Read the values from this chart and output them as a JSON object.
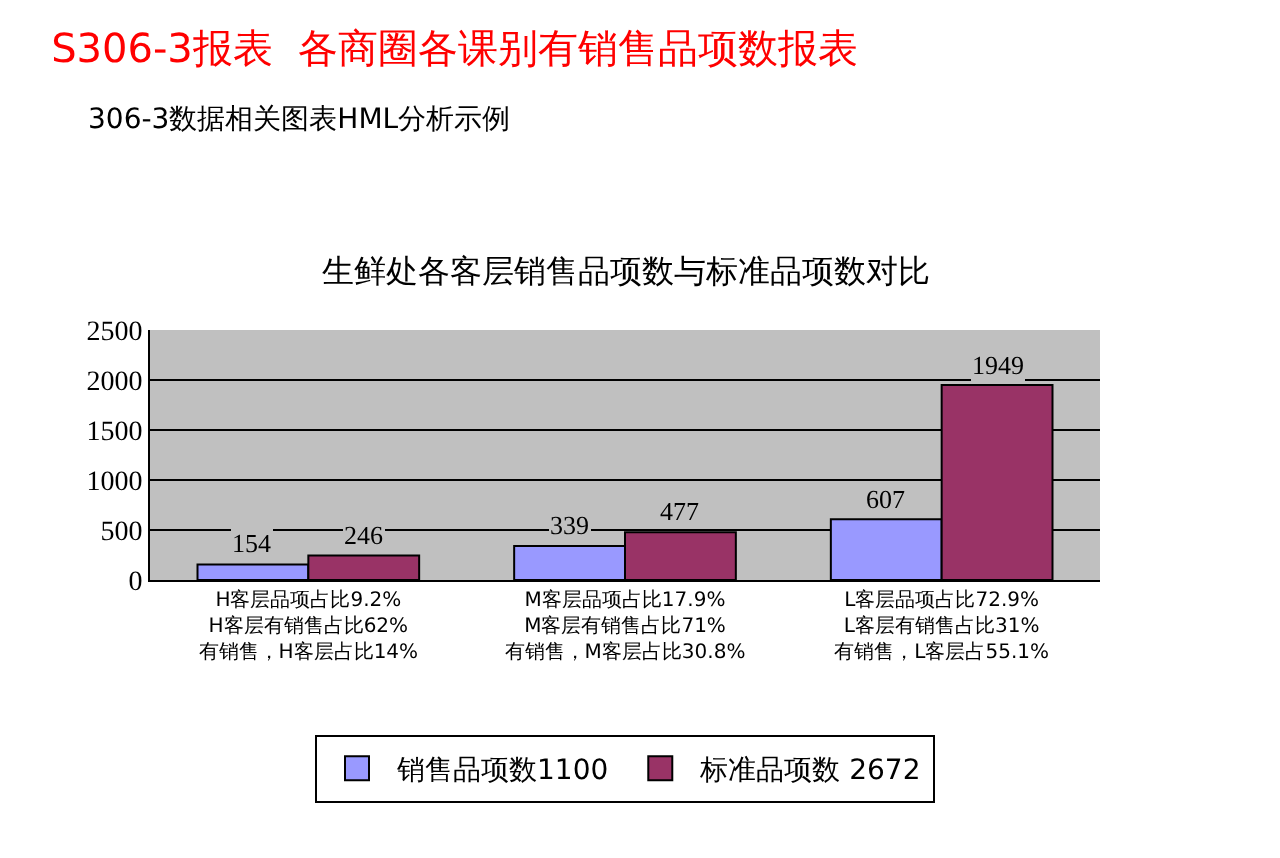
{
  "chart_data": {
    "type": "bar",
    "title": "S306-3报表  各商圈各课别有销售品项数报表",
    "subtitle": "306-3数据相关图表HML分析示例",
    "annotations": [
      "生鲜处各客层销售品项数与标准品项数对比"
    ],
    "categories": [
      "H客层品项占比9.2%\nH客层有销售占比62%\n有销售，H客层占比14%",
      "M客层品项占比17.9%\nM客层有销售占比71%\n有销售，M客层占比30.8%",
      "L客层品项占比72.9%\nL客层有销售占比31%\n有销售，L客层占55.1%"
    ],
    "series": [
      {
        "name": "销售品项数1100",
        "color": "#9999ff",
        "values": [
          154,
          339,
          607
        ]
      },
      {
        "name": "标准品项数 2672",
        "color": "#993366",
        "values": [
          246,
          477,
          1949
        ]
      }
    ],
    "ylim": [
      0,
      2500
    ],
    "yticks": [
      0,
      500,
      1000,
      1500,
      2000,
      2500
    ],
    "grid": "y",
    "legend": "bottom",
    "data_labels": true
  }
}
